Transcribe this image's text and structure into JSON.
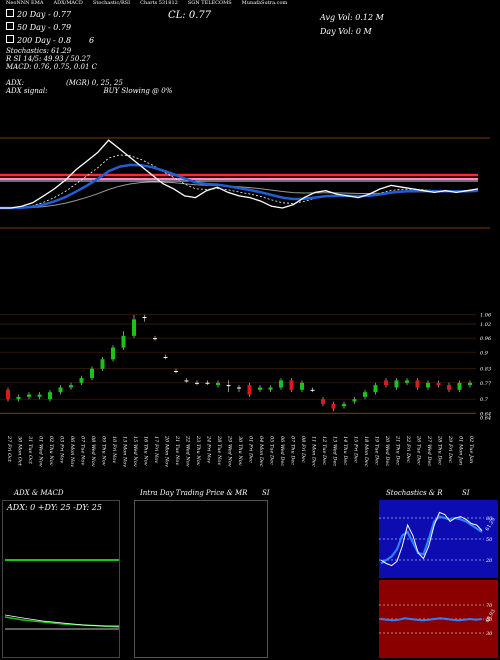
{
  "header": {
    "tabs": [
      "NeoNNN EMA",
      "ADX/MACD",
      "Stochastic/RSI",
      "Charts 531812",
      "SGN TELECOMS",
      "MunafaSutra.com"
    ]
  },
  "indicators": {
    "ema20": "20  Day - 0.77",
    "ema50": "50  Day - 0.79",
    "ema200": "200  Day - 0.8",
    "ema200_suffix": "6",
    "stochastics": "Stochastics: 61.29",
    "rsi": "R          SI 14/5: 49.93 / 50.27",
    "macd": "MACD: 0.76, 0.75, 0.01 C",
    "adx": "ADX:",
    "adx_mgr": "(MGR) 0, 25, 25",
    "adx_signal": "ADX  signal:",
    "buy_signal": "BUY Slowing @ 0%",
    "close": "CL: 0.77",
    "avg_vol": "Avg Vol: 0.12  M",
    "day_vol": "Day Vol: 0   M"
  },
  "colors": {
    "background": "#000000",
    "price_line": "#ffffff",
    "ema20": "#1f5fd6",
    "ema50": "#ffffff",
    "ema_red": "#ff2a2a",
    "ema_pink": "#ff88cc",
    "up_candle": "#19c419",
    "down_candle": "#e01818",
    "adx_green": "#19c419",
    "stoch_bg": "#0c0cb0",
    "rsi_bg": "#8a0000"
  },
  "price_axis": [
    "1.06",
    "1.02",
    "0.96",
    "0.9",
    "0.83",
    "0.77",
    "0.7",
    "0.64",
    "0.64"
  ],
  "dates": [
    "27 Fri Oct",
    "30 Mon Oct",
    "31 Tue Oct",
    "01 Wed Nov",
    "02 Thu Nov",
    "03 Fri Nov",
    "06 Mon Nov",
    "07 Tue Nov",
    "08 Wed Nov",
    "09 Thu Nov",
    "10 Fri Nov",
    "13 Mon Nov",
    "15 Wed Nov",
    "16 Thu Nov",
    "17 Fri Nov",
    "20 Mon Nov",
    "21 Tue Nov",
    "22 Wed Nov",
    "23 Thu Nov",
    "24 Fri Nov",
    "28 Tue Nov",
    "29 Wed Nov",
    "30 Thu Nov",
    "01 Fri Dec",
    "04 Mon Dec",
    "05 Tue Dec",
    "06 Wed Dec",
    "07 Thu Dec",
    "08 Fri Dec",
    "11 Mon Dec",
    "12 Tue Dec",
    "13 Wed Dec",
    "14 Thu Dec",
    "15 Fri Dec",
    "18 Mon Dec",
    "19 Tue Dec",
    "20 Wed Dec",
    "21 Thu Dec",
    "22 Fri Dec",
    "26 Tue Dec",
    "27 Wed Dec",
    "28 Thu Dec",
    "29 Fri Dec",
    "01 Mon Jan",
    "02 Tue Jan"
  ],
  "panels": {
    "adx_title": "ADX  & MACD",
    "adx_readout": "ADX: 0  +DY: 25  -DY: 25",
    "intraday_title": "Intra  Day Trading Price  & MR",
    "intraday_si": "SI",
    "stoch_title": "Stochastics & R",
    "stoch_si": "SI",
    "stoch_levels": [
      "80",
      "50",
      "20"
    ],
    "stoch_value": "61.29",
    "rsi_levels": [
      "70",
      "50",
      "30"
    ],
    "rsi_value": "49.93"
  },
  "chart_data": [
    {
      "type": "line",
      "title": "",
      "series": [
        {
          "name": "",
          "values": [
            0.66,
            0.66,
            0.67,
            0.69,
            0.73,
            0.77,
            0.82,
            0.88,
            0.93,
            0.98,
            1.05,
            1.0,
            0.95,
            0.9,
            0.85,
            0.8,
            0.77,
            0.73,
            0.72,
            0.76,
            0.78,
            0.75,
            0.73,
            0.72,
            0.7,
            0.67,
            0.66,
            0.68,
            0.72,
            0.75,
            0.76,
            0.74,
            0.73,
            0.72,
            0.74,
            0.77,
            0.79,
            0.78,
            0.77,
            0.76,
            0.75,
            0.76,
            0.75,
            0.76,
            0.77
          ]
        }
      ]
    },
    {
      "type": "bar",
      "title": "",
      "categories": [
        "27 Fri Oct",
        "30 Mon Oct",
        "31 Tue Oct",
        "01 Wed Nov",
        "02 Thu Nov",
        "03 Fri Nov",
        "06 Mon Nov",
        "07 Tue Nov",
        "08 Wed Nov",
        "09 Thu Nov",
        "10 Fri Nov",
        "13 Mon Nov",
        "15 Wed Nov",
        "16 Thu Nov",
        "17 Fri Nov",
        "20 Mon Nov",
        "21 Tue Nov",
        "22 Wed Nov",
        "23 Thu Nov",
        "24 Fri Nov",
        "28 Tue Nov",
        "29 Wed Nov",
        "30 Thu Nov",
        "01 Fri Dec",
        "04 Mon Dec",
        "05 Tue Dec",
        "06 Wed Dec",
        "07 Thu Dec",
        "08 Fri Dec",
        "11 Mon Dec",
        "12 Tue Dec",
        "13 Wed Dec",
        "14 Thu Dec",
        "15 Fri Dec",
        "18 Mon Dec",
        "19 Tue Dec",
        "20 Wed Dec",
        "21 Thu Dec",
        "22 Fri Dec",
        "26 Tue Dec",
        "27 Wed Dec",
        "28 Thu Dec",
        "29 Fri Dec",
        "01 Mon Jan",
        "02 Tue Jan"
      ],
      "candles": [
        {
          "o": 0.74,
          "c": 0.7,
          "h": 0.75,
          "l": 0.69
        },
        {
          "o": 0.7,
          "c": 0.71,
          "h": 0.72,
          "l": 0.69
        },
        {
          "o": 0.71,
          "c": 0.72,
          "h": 0.73,
          "l": 0.7
        },
        {
          "o": 0.71,
          "c": 0.72,
          "h": 0.73,
          "l": 0.7
        },
        {
          "o": 0.7,
          "c": 0.73,
          "h": 0.74,
          "l": 0.69
        },
        {
          "o": 0.73,
          "c": 0.75,
          "h": 0.76,
          "l": 0.72
        },
        {
          "o": 0.75,
          "c": 0.76,
          "h": 0.77,
          "l": 0.74
        },
        {
          "o": 0.77,
          "c": 0.79,
          "h": 0.8,
          "l": 0.76
        },
        {
          "o": 0.79,
          "c": 0.83,
          "h": 0.84,
          "l": 0.78
        },
        {
          "o": 0.83,
          "c": 0.87,
          "h": 0.88,
          "l": 0.82
        },
        {
          "o": 0.87,
          "c": 0.92,
          "h": 0.93,
          "l": 0.86
        },
        {
          "o": 0.92,
          "c": 0.97,
          "h": 0.99,
          "l": 0.91
        },
        {
          "o": 0.97,
          "c": 1.04,
          "h": 1.06,
          "l": 0.96
        },
        {
          "o": 1.05,
          "c": 1.05,
          "h": 1.06,
          "l": 1.03
        },
        {
          "o": 0.96,
          "c": 0.96,
          "h": 0.97,
          "l": 0.95
        },
        {
          "o": 0.88,
          "c": 0.88,
          "h": 0.89,
          "l": 0.87
        },
        {
          "o": 0.82,
          "c": 0.82,
          "h": 0.83,
          "l": 0.81
        },
        {
          "o": 0.78,
          "c": 0.78,
          "h": 0.79,
          "l": 0.77
        },
        {
          "o": 0.77,
          "c": 0.77,
          "h": 0.78,
          "l": 0.76
        },
        {
          "o": 0.77,
          "c": 0.77,
          "h": 0.78,
          "l": 0.76
        },
        {
          "o": 0.76,
          "c": 0.77,
          "h": 0.78,
          "l": 0.75
        },
        {
          "o": 0.76,
          "c": 0.76,
          "h": 0.78,
          "l": 0.73
        },
        {
          "o": 0.75,
          "c": 0.75,
          "h": 0.76,
          "l": 0.73
        },
        {
          "o": 0.76,
          "c": 0.72,
          "h": 0.77,
          "l": 0.71
        },
        {
          "o": 0.74,
          "c": 0.75,
          "h": 0.76,
          "l": 0.73
        },
        {
          "o": 0.74,
          "c": 0.75,
          "h": 0.76,
          "l": 0.73
        },
        {
          "o": 0.75,
          "c": 0.78,
          "h": 0.79,
          "l": 0.74
        },
        {
          "o": 0.78,
          "c": 0.74,
          "h": 0.79,
          "l": 0.73
        },
        {
          "o": 0.74,
          "c": 0.77,
          "h": 0.78,
          "l": 0.73
        },
        {
          "o": 0.74,
          "c": 0.74,
          "h": 0.75,
          "l": 0.73
        },
        {
          "o": 0.7,
          "c": 0.68,
          "h": 0.71,
          "l": 0.67
        },
        {
          "o": 0.68,
          "c": 0.66,
          "h": 0.69,
          "l": 0.65
        },
        {
          "o": 0.67,
          "c": 0.68,
          "h": 0.69,
          "l": 0.66
        },
        {
          "o": 0.69,
          "c": 0.7,
          "h": 0.71,
          "l": 0.68
        },
        {
          "o": 0.71,
          "c": 0.73,
          "h": 0.74,
          "l": 0.7
        },
        {
          "o": 0.73,
          "c": 0.76,
          "h": 0.77,
          "l": 0.72
        },
        {
          "o": 0.78,
          "c": 0.76,
          "h": 0.79,
          "l": 0.75
        },
        {
          "o": 0.75,
          "c": 0.78,
          "h": 0.79,
          "l": 0.74
        },
        {
          "o": 0.77,
          "c": 0.78,
          "h": 0.79,
          "l": 0.76
        },
        {
          "o": 0.78,
          "c": 0.75,
          "h": 0.79,
          "l": 0.74
        },
        {
          "o": 0.75,
          "c": 0.77,
          "h": 0.78,
          "l": 0.74
        },
        {
          "o": 0.77,
          "c": 0.76,
          "h": 0.78,
          "l": 0.75
        },
        {
          "o": 0.76,
          "c": 0.74,
          "h": 0.77,
          "l": 0.73
        },
        {
          "o": 0.74,
          "c": 0.77,
          "h": 0.78,
          "l": 0.73
        },
        {
          "o": 0.76,
          "c": 0.77,
          "h": 0.78,
          "l": 0.75
        }
      ],
      "ylim": [
        0.62,
        1.08
      ]
    },
    {
      "type": "line",
      "title": "",
      "series": [
        {
          "name": "",
          "values": [
            20,
            15,
            12,
            18,
            40,
            70,
            55,
            30,
            22,
            40,
            70,
            88,
            85,
            75,
            80,
            82,
            78,
            72,
            70,
            62
          ]
        },
        {
          "name": "",
          "values": [
            15,
            20,
            25,
            35,
            55,
            60,
            45,
            30,
            28,
            50,
            75,
            82,
            80,
            78,
            80,
            78,
            75,
            70,
            65,
            60
          ]
        }
      ],
      "ylim": [
        0,
        100
      ]
    },
    {
      "type": "line",
      "title": "",
      "series": [
        {
          "name": "",
          "values": [
            50,
            49,
            48,
            49,
            51,
            50,
            49,
            48,
            49,
            50,
            51,
            50,
            49,
            48,
            49,
            50,
            49,
            50
          ]
        }
      ],
      "ylim": [
        0,
        100
      ]
    }
  ]
}
